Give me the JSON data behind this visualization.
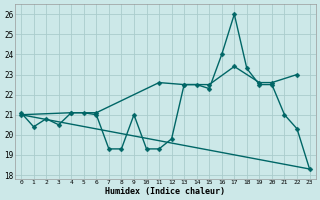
{
  "title": "",
  "xlabel": "Humidex (Indice chaleur)",
  "bg_color": "#cce8e8",
  "grid_color": "#aacccc",
  "line_color": "#006666",
  "xlim": [
    -0.5,
    23.5
  ],
  "ylim": [
    17.8,
    26.5
  ],
  "yticks": [
    18,
    19,
    20,
    21,
    22,
    23,
    24,
    25,
    26
  ],
  "xticks": [
    0,
    1,
    2,
    3,
    4,
    5,
    6,
    7,
    8,
    9,
    10,
    11,
    12,
    13,
    14,
    15,
    16,
    17,
    18,
    19,
    20,
    21,
    22,
    23
  ],
  "line1_x": [
    0,
    1,
    2,
    3,
    4,
    5,
    6,
    7,
    8,
    9,
    10,
    11,
    12,
    13,
    14,
    15,
    16,
    17,
    18,
    19,
    20,
    21,
    22,
    23
  ],
  "line1_y": [
    21.1,
    20.4,
    20.8,
    20.5,
    21.1,
    21.1,
    21.0,
    19.3,
    19.3,
    21.0,
    19.3,
    19.3,
    19.8,
    22.5,
    22.5,
    22.3,
    24.0,
    26.0,
    23.3,
    22.5,
    22.5,
    21.0,
    20.3,
    18.3
  ],
  "line2_x": [
    0,
    4,
    6,
    11,
    13,
    15,
    17,
    19,
    20,
    22
  ],
  "line2_y": [
    21.0,
    21.1,
    21.1,
    22.6,
    22.5,
    22.5,
    23.4,
    22.6,
    22.6,
    23.0
  ],
  "line3_x": [
    0,
    23
  ],
  "line3_y": [
    21.0,
    18.3
  ],
  "markersize": 2.5,
  "linewidth": 1.0
}
